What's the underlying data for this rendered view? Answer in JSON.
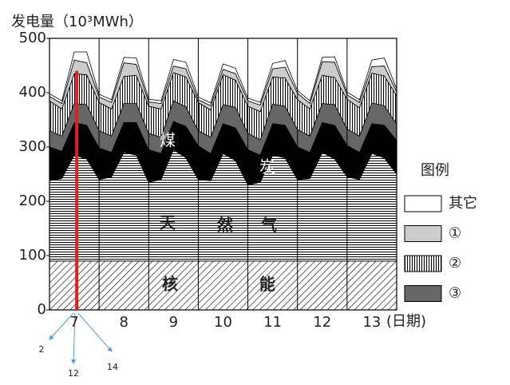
{
  "chart_data": {
    "type": "stacked-area",
    "y_label": "发电量（10³MWh）",
    "x_label": "(日期)",
    "x": [
      7,
      7.25,
      7.5,
      7.75,
      8,
      8.25,
      8.5,
      8.75,
      9,
      9.25,
      9.5,
      9.75,
      10,
      10.25,
      10.5,
      10.75,
      11,
      11.25,
      11.5,
      11.75,
      12,
      12.25,
      12.5,
      12.75,
      13,
      13.25,
      13.5,
      13.75,
      14
    ],
    "xlim": [
      7,
      14
    ],
    "xticks": [
      {
        "value": 7.5,
        "label": "7"
      },
      {
        "value": 8.5,
        "label": "8"
      },
      {
        "value": 9.5,
        "label": "9"
      },
      {
        "value": 10.5,
        "label": "10"
      },
      {
        "value": 11.5,
        "label": "11"
      },
      {
        "value": 12.5,
        "label": "12"
      },
      {
        "value": 13.5,
        "label": "13"
      }
    ],
    "ylim": [
      0,
      500
    ],
    "yticks": [
      0,
      100,
      200,
      300,
      400,
      500
    ],
    "series": [
      {
        "pattern": "diagonal",
        "values": [
          90,
          90,
          90,
          90,
          90,
          90,
          90,
          90,
          90,
          90,
          90,
          90,
          90,
          90,
          90,
          90,
          90,
          90,
          90,
          90,
          90,
          90,
          90,
          90,
          90,
          90,
          90,
          90,
          90
        ]
      },
      {
        "pattern": "horizontal",
        "values": [
          148,
          152,
          195,
          188,
          150,
          155,
          200,
          195,
          145,
          150,
          205,
          190,
          150,
          148,
          198,
          185,
          140,
          145,
          195,
          190,
          150,
          152,
          200,
          188,
          155,
          150,
          198,
          190,
          160
        ]
      },
      {
        "color": "#000000",
        "values": [
          62,
          50,
          60,
          62,
          58,
          45,
          55,
          60,
          60,
          48,
          52,
          58,
          62,
          50,
          55,
          60,
          65,
          50,
          58,
          60,
          60,
          48,
          55,
          62,
          58,
          50,
          55,
          60,
          62
        ]
      },
      {
        "name": "③",
        "color": "#666666",
        "values": [
          30,
          28,
          35,
          38,
          32,
          30,
          35,
          35,
          30,
          30,
          38,
          36,
          28,
          30,
          35,
          38,
          30,
          28,
          36,
          35,
          32,
          30,
          35,
          38,
          30,
          30,
          38,
          36,
          30
        ]
      },
      {
        "name": "②",
        "pattern": "vertical",
        "values": [
          55,
          50,
          55,
          55,
          52,
          50,
          50,
          52,
          50,
          52,
          52,
          55,
          52,
          50,
          55,
          50,
          50,
          52,
          50,
          52,
          55,
          50,
          52,
          50,
          55,
          52,
          55,
          55,
          52
        ]
      },
      {
        "name": "①",
        "color": "#cccccc",
        "values": [
          8,
          10,
          25,
          22,
          10,
          12,
          25,
          20,
          8,
          10,
          12,
          15,
          5,
          8,
          10,
          12,
          10,
          12,
          15,
          20,
          12,
          10,
          25,
          28,
          8,
          10,
          12,
          18,
          8
        ]
      },
      {
        "name": "其它",
        "color": "#ffffff",
        "values": [
          5,
          5,
          15,
          20,
          5,
          5,
          10,
          12,
          5,
          5,
          12,
          12,
          5,
          5,
          10,
          10,
          5,
          5,
          10,
          12,
          5,
          5,
          8,
          10,
          5,
          5,
          12,
          15,
          5
        ]
      }
    ],
    "legend_title": "图例",
    "annotations": [
      "煤",
      "炭",
      "天",
      "然",
      "气",
      "核",
      "能"
    ],
    "highlight_x": 7.55,
    "highlight_top": 440,
    "highlight_color": "#e02020",
    "hour_labels": [
      "2",
      "12",
      "14"
    ]
  }
}
